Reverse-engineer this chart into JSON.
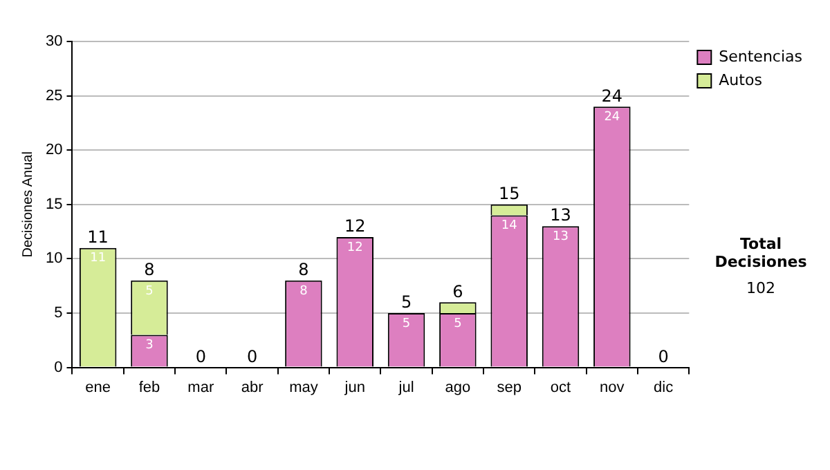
{
  "chart_data": {
    "type": "bar",
    "ylabel": "Decisiones Anual",
    "categories": [
      "ene",
      "feb",
      "mar",
      "abr",
      "may",
      "jun",
      "jul",
      "ago",
      "sep",
      "oct",
      "nov",
      "dic"
    ],
    "series": [
      {
        "name": "Sentencias",
        "color": "#dd7fc0",
        "values": [
          0,
          3,
          0,
          0,
          8,
          12,
          5,
          5,
          14,
          13,
          24,
          0
        ],
        "value_labels": [
          null,
          "3",
          null,
          null,
          "8",
          "12",
          "5",
          "5",
          "14",
          "13",
          "24",
          null
        ]
      },
      {
        "name": "Autos",
        "color": "#d6ec98",
        "values": [
          11,
          5,
          0,
          0,
          0,
          0,
          0,
          1,
          1,
          0,
          0,
          0
        ],
        "value_labels": [
          "11",
          "5",
          null,
          null,
          null,
          null,
          null,
          null,
          null,
          null,
          null,
          null
        ]
      }
    ],
    "stacked": true,
    "ylim": [
      0,
      30
    ],
    "yticks": [
      0,
      5,
      10,
      15,
      20,
      25,
      30
    ],
    "grid": "y",
    "legend": "right",
    "totals": [
      "11",
      "8",
      "0",
      "0",
      "8",
      "12",
      "5",
      "6",
      "15",
      "13",
      "24",
      "0"
    ],
    "annotations": [
      "Total Decisiones",
      "102"
    ]
  }
}
